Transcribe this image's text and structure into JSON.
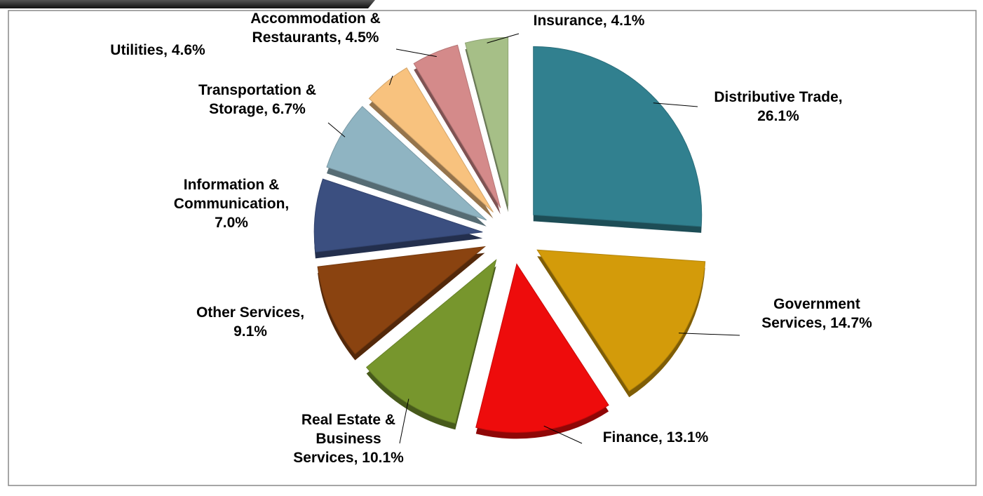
{
  "chart_data": {
    "type": "pie",
    "labels": [
      [
        "Distributive Trade,",
        "26.1%"
      ],
      [
        "Government",
        "Services, 14.7%"
      ],
      [
        "Finance, 13.1%"
      ],
      [
        "Real Estate &",
        "Business",
        "Services, 10.1%"
      ],
      [
        "Other Services,",
        "9.1%"
      ],
      [
        "Information &",
        "Communication,",
        "7.0%"
      ],
      [
        "Transportation &",
        "Storage, 6.7%"
      ],
      [
        "Utilities, 4.6%"
      ],
      [
        "Accommodation &",
        "Restaurants, 4.5%"
      ],
      [
        "Insurance, 4.1%"
      ]
    ],
    "values": [
      26.1,
      14.7,
      13.1,
      10.1,
      9.1,
      7.0,
      6.7,
      4.6,
      4.5,
      4.1
    ],
    "colors": [
      "#31808f",
      "#d39b0a",
      "#ee0c0c",
      "#77962d",
      "#8a4310",
      "#3b4f80",
      "#8fb4c2",
      "#f8c27e",
      "#d48a8a",
      "#a6bf87"
    ]
  }
}
